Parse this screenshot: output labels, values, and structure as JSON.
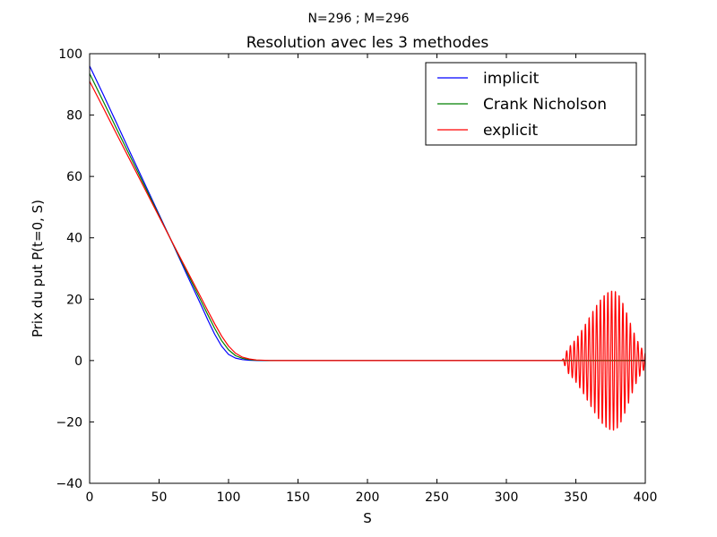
{
  "suptitle": "N=296 ; M=296",
  "chart_data": {
    "type": "line",
    "title": "Resolution avec les 3 methodes",
    "xlabel": "S",
    "ylabel": "Prix du put P(t=0, S)",
    "xlim": [
      0,
      400
    ],
    "ylim": [
      -40,
      100
    ],
    "xticks": [
      0,
      50,
      100,
      150,
      200,
      250,
      300,
      350,
      400
    ],
    "yticks": [
      -40,
      -20,
      0,
      20,
      40,
      60,
      80,
      100
    ],
    "grid": false,
    "legend_position": "top-right",
    "series": [
      {
        "name": "implicit",
        "color": "#0000ff",
        "x": [
          0,
          10,
          20,
          30,
          40,
          50,
          60,
          70,
          80,
          85,
          90,
          95,
          100,
          105,
          110,
          115,
          120,
          130,
          140,
          150,
          200,
          250,
          300,
          350,
          400
        ],
        "y": [
          96,
          86.5,
          76.8,
          67.0,
          57.3,
          47.6,
          37.9,
          28.0,
          18.3,
          13.3,
          8.6,
          4.7,
          2.0,
          0.8,
          0.3,
          0.1,
          0.02,
          0,
          0,
          0,
          0,
          0,
          0,
          0,
          0
        ]
      },
      {
        "name": "Crank Nicholson",
        "color": "#008000",
        "x": [
          0,
          10,
          20,
          30,
          40,
          50,
          60,
          70,
          80,
          85,
          90,
          95,
          100,
          105,
          110,
          115,
          120,
          130,
          140,
          150,
          200,
          250,
          300,
          350,
          400
        ],
        "y": [
          93.5,
          84.3,
          75.0,
          65.8,
          56.5,
          47.2,
          38.0,
          28.8,
          19.6,
          15.0,
          10.5,
          6.5,
          3.5,
          1.6,
          0.7,
          0.3,
          0.1,
          0.01,
          0,
          0,
          0,
          0,
          0,
          0,
          0
        ]
      },
      {
        "name": "explicit",
        "color": "#ff0000",
        "x": [
          0,
          10,
          20,
          30,
          40,
          50,
          60,
          70,
          80,
          85,
          90,
          95,
          100,
          105,
          110,
          115,
          120,
          130,
          140,
          150,
          200,
          250,
          300,
          340,
          400
        ],
        "y": [
          91,
          82.2,
          73.3,
          64.5,
          55.7,
          46.9,
          38.1,
          29.4,
          20.7,
          16.3,
          12.0,
          8.0,
          4.7,
          2.4,
          1.1,
          0.5,
          0.2,
          0.02,
          0,
          0,
          0,
          0,
          0,
          0,
          0
        ],
        "oscillation": {
          "x_start": 340,
          "x_end": 400,
          "x_peak": 377,
          "peak_amplitude": 23,
          "period": 2.7
        }
      }
    ]
  }
}
